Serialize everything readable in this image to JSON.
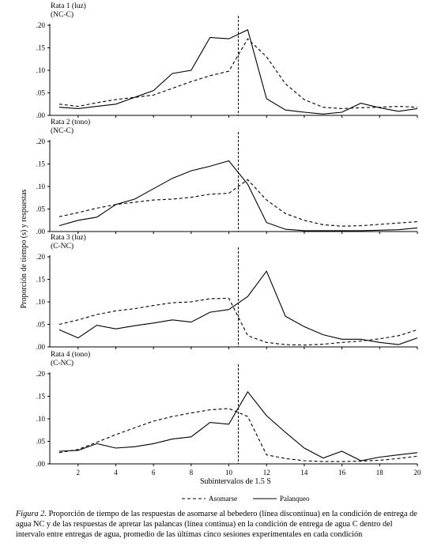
{
  "y_axis_label": "Proporción de tiempo (s) y respuestas",
  "x_axis_label": "Subintervalos de 1.5 S",
  "legend": {
    "dashed": "Asomarse",
    "solid": "Palanqueo"
  },
  "caption": {
    "label": "Figura 2.",
    "text": "Proporción de tiempo de las respuestas de asomarse al bebedero (línea discontinua) en la condición de entrega de agua NC y de las respuestas de apretar las palancas (línea continua) en la condición de entrega de agua C dentro del intervalo entre entregas de agua, promedio de las últimas cinco sesiones experimentales en cada condición"
  },
  "chart_data": [
    {
      "type": "line",
      "title": "Rata 1 (luz)",
      "subtitle": "(NC-C)",
      "x": [
        1,
        2,
        3,
        4,
        5,
        6,
        7,
        8,
        9,
        10,
        11,
        12,
        13,
        14,
        15,
        16,
        17,
        18,
        19,
        20
      ],
      "xlim": [
        0.5,
        20
      ],
      "ylim": [
        0,
        0.2
      ],
      "yticks": [
        ".00",
        ".05",
        ".10",
        ".15",
        ".20"
      ],
      "xticks": [],
      "vline": 10.5,
      "series": [
        {
          "name": "Asomarse",
          "style": "dashed",
          "values": [
            0.025,
            0.02,
            0.028,
            0.035,
            0.04,
            0.045,
            0.06,
            0.075,
            0.088,
            0.098,
            0.17,
            0.13,
            0.07,
            0.035,
            0.018,
            0.015,
            0.017,
            0.018,
            0.02,
            0.018
          ]
        },
        {
          "name": "Palanqueo",
          "style": "solid",
          "values": [
            0.018,
            0.015,
            0.02,
            0.025,
            0.04,
            0.055,
            0.093,
            0.1,
            0.173,
            0.17,
            0.19,
            0.037,
            0.012,
            0.007,
            0.003,
            0.007,
            0.027,
            0.017,
            0.009,
            0.015
          ]
        }
      ]
    },
    {
      "type": "line",
      "title": "Rata 2 (tono)",
      "subtitle": "(NC-C)",
      "x": [
        1,
        2,
        3,
        4,
        5,
        6,
        7,
        8,
        9,
        10,
        11,
        12,
        13,
        14,
        15,
        16,
        17,
        18,
        19,
        20
      ],
      "xlim": [
        0.5,
        20
      ],
      "ylim": [
        0,
        0.2
      ],
      "yticks": [
        ".00",
        ".05",
        ".10",
        ".15",
        ".20"
      ],
      "xticks": [],
      "vline": 10.5,
      "series": [
        {
          "name": "Asomarse",
          "style": "dashed",
          "values": [
            0.033,
            0.042,
            0.052,
            0.06,
            0.065,
            0.07,
            0.072,
            0.076,
            0.083,
            0.085,
            0.115,
            0.07,
            0.04,
            0.025,
            0.015,
            0.012,
            0.013,
            0.016,
            0.019,
            0.022
          ]
        },
        {
          "name": "Palanqueo",
          "style": "solid",
          "values": [
            0.013,
            0.025,
            0.032,
            0.06,
            0.072,
            0.095,
            0.118,
            0.135,
            0.145,
            0.157,
            0.105,
            0.02,
            0.005,
            0.002,
            0.002,
            0.002,
            0.002,
            0.003,
            0.004,
            0.008
          ]
        }
      ]
    },
    {
      "type": "line",
      "title": "Rata 3 (luz)",
      "subtitle": "(C-NC)",
      "x": [
        1,
        2,
        3,
        4,
        5,
        6,
        7,
        8,
        9,
        10,
        11,
        12,
        13,
        14,
        15,
        16,
        17,
        18,
        19,
        20
      ],
      "xlim": [
        0.5,
        20
      ],
      "ylim": [
        0,
        0.2
      ],
      "yticks": [
        ".00",
        ".05",
        ".10",
        ".15",
        ".20"
      ],
      "xticks": [],
      "vline": 10.5,
      "series": [
        {
          "name": "Asomarse",
          "style": "dashed",
          "values": [
            0.05,
            0.06,
            0.072,
            0.08,
            0.085,
            0.092,
            0.098,
            0.1,
            0.107,
            0.108,
            0.025,
            0.01,
            0.005,
            0.004,
            0.006,
            0.01,
            0.013,
            0.018,
            0.025,
            0.038
          ]
        },
        {
          "name": "Palanqueo",
          "style": "solid",
          "values": [
            0.038,
            0.02,
            0.048,
            0.04,
            0.047,
            0.053,
            0.06,
            0.055,
            0.077,
            0.083,
            0.112,
            0.168,
            0.068,
            0.045,
            0.027,
            0.017,
            0.017,
            0.01,
            0.005,
            0.02
          ]
        }
      ]
    },
    {
      "type": "line",
      "title": "Rata 4 (tono)",
      "subtitle": "(C-NC)",
      "x": [
        1,
        2,
        3,
        4,
        5,
        6,
        7,
        8,
        9,
        10,
        11,
        12,
        13,
        14,
        15,
        16,
        17,
        18,
        19,
        20
      ],
      "xlim": [
        0.5,
        20
      ],
      "ylim": [
        0,
        0.2
      ],
      "yticks": [
        ".00",
        ".05",
        ".10",
        ".15",
        ".20"
      ],
      "xticks": [
        "2",
        "4",
        "6",
        "8",
        "10",
        "12",
        "14",
        "16",
        "18",
        "20"
      ],
      "vline": 10.5,
      "series": [
        {
          "name": "Asomarse",
          "style": "dashed",
          "values": [
            0.025,
            0.032,
            0.048,
            0.065,
            0.08,
            0.095,
            0.105,
            0.113,
            0.12,
            0.123,
            0.105,
            0.02,
            0.012,
            0.007,
            0.005,
            0.005,
            0.006,
            0.008,
            0.012,
            0.017
          ]
        },
        {
          "name": "Palanqueo",
          "style": "solid",
          "values": [
            0.028,
            0.03,
            0.045,
            0.035,
            0.038,
            0.045,
            0.055,
            0.06,
            0.092,
            0.088,
            0.16,
            0.107,
            0.07,
            0.035,
            0.013,
            0.028,
            0.007,
            0.015,
            0.02,
            0.025
          ]
        }
      ]
    }
  ]
}
